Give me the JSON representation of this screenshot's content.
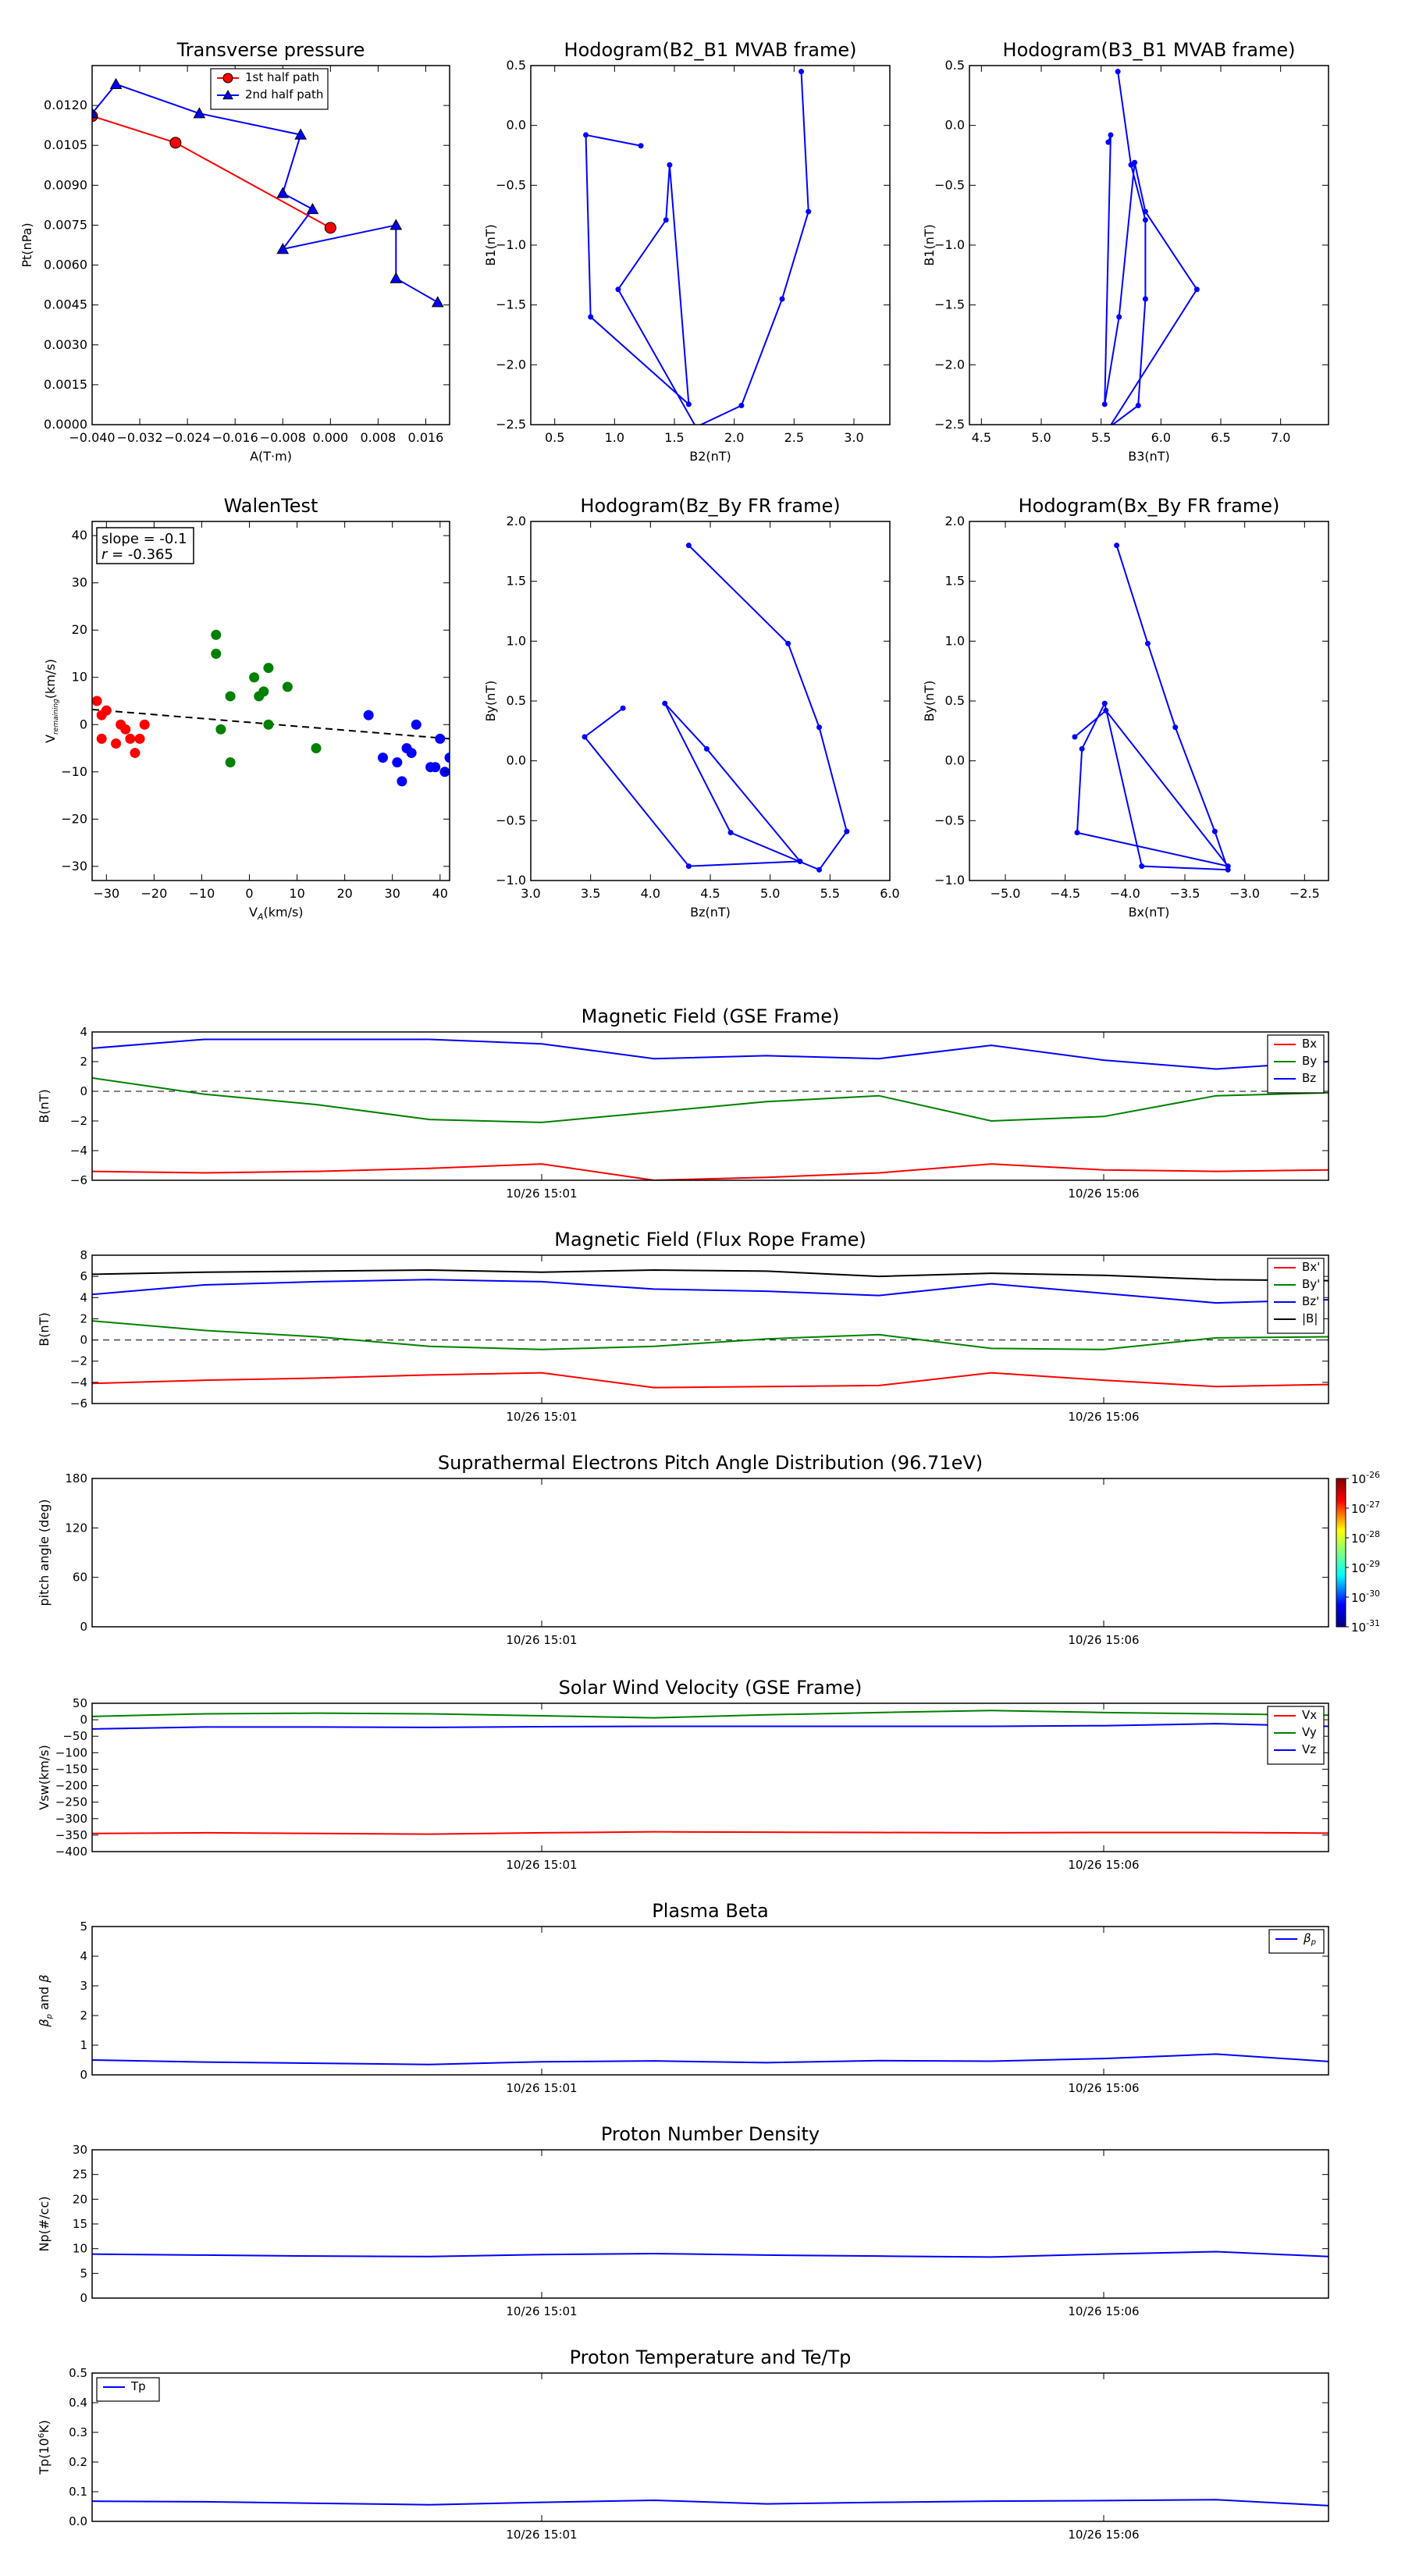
{
  "colors": {
    "red": "#ff0000",
    "green": "#008000",
    "blue": "#0000ff",
    "black": "#000000"
  },
  "chart_data": [
    {
      "id": "transverse-pressure",
      "type": "scatter",
      "title": "Transverse pressure",
      "xlabel": "A(T·m)",
      "ylabel": "Pt(nPa)",
      "xlim": [
        -0.04,
        0.02
      ],
      "ylim": [
        0,
        0.0135
      ],
      "xticks": [
        "−0.040",
        "−0.032",
        "−0.024",
        "−0.016",
        "−0.008",
        "0.000",
        "0.008",
        "0.016"
      ],
      "xtick_values": [
        -0.04,
        -0.032,
        -0.024,
        -0.016,
        -0.008,
        0.0,
        0.008,
        0.016
      ],
      "yticks": [
        "0.0000",
        "0.0015",
        "0.0030",
        "0.0045",
        "0.0060",
        "0.0075",
        "0.0090",
        "0.0105",
        "0.0120"
      ],
      "ytick_values": [
        0,
        0.0015,
        0.003,
        0.0045,
        0.006,
        0.0075,
        0.009,
        0.0105,
        0.012
      ],
      "legend": "top-center",
      "series": [
        {
          "name": "1st half path",
          "color": "#ff0000",
          "marker": "circle",
          "x": [
            -0.04,
            -0.026,
            0.0
          ],
          "y": [
            0.0116,
            0.0106,
            0.0074
          ]
        },
        {
          "name": "2nd half path",
          "color": "#0000ff",
          "marker": "triangle",
          "x": [
            -0.04,
            -0.036,
            -0.022,
            -0.005,
            -0.008,
            -0.003,
            -0.008,
            0.011,
            0.011,
            0.018
          ],
          "y": [
            0.0117,
            0.0128,
            0.0117,
            0.0109,
            0.0087,
            0.0081,
            0.0066,
            0.0075,
            0.0055,
            0.0046
          ]
        }
      ]
    },
    {
      "id": "hodogram-b2-b1",
      "type": "line",
      "title": "Hodogram(B2_B1 MVAB frame)",
      "xlabel": "B2(nT)",
      "ylabel": "B1(nT)",
      "xlim": [
        0.3,
        3.3
      ],
      "ylim": [
        -2.5,
        0.5
      ],
      "xticks": [
        "0.5",
        "1.0",
        "1.5",
        "2.0",
        "2.5",
        "3.0"
      ],
      "xtick_values": [
        0.5,
        1.0,
        1.5,
        2.0,
        2.5,
        3.0
      ],
      "yticks": [
        "−2.5",
        "−2.0",
        "−1.5",
        "−1.0",
        "−0.5",
        "0.0",
        "0.5"
      ],
      "ytick_values": [
        -2.5,
        -2.0,
        -1.5,
        -1.0,
        -0.5,
        0.0,
        0.5
      ],
      "series": [
        {
          "color": "#0000ff",
          "x": [
            1.22,
            0.76,
            0.8,
            1.62,
            1.46,
            1.43,
            1.03,
            1.68,
            2.06,
            2.4,
            2.62,
            2.56
          ],
          "y": [
            -0.17,
            -0.08,
            -1.6,
            -2.33,
            -0.33,
            -0.79,
            -1.37,
            -2.52,
            -2.34,
            -1.45,
            -0.72,
            0.45
          ]
        }
      ]
    },
    {
      "id": "hodogram-b3-b1",
      "type": "line",
      "title": "Hodogram(B3_B1 MVAB frame)",
      "xlabel": "B3(nT)",
      "ylabel": "B1(nT)",
      "xlim": [
        4.4,
        7.4
      ],
      "ylim": [
        -2.5,
        0.5
      ],
      "xticks": [
        "4.5",
        "5.0",
        "5.5",
        "6.0",
        "6.5",
        "7.0"
      ],
      "xtick_values": [
        4.5,
        5.0,
        5.5,
        6.0,
        6.5,
        7.0
      ],
      "yticks": [
        "−2.5",
        "−2.0",
        "−1.5",
        "−1.0",
        "−0.5",
        "0.0",
        "0.5"
      ],
      "ytick_values": [
        -2.5,
        -2.0,
        -1.5,
        -1.0,
        -0.5,
        0.0,
        0.5
      ],
      "series": [
        {
          "color": "#0000ff",
          "x": [
            5.56,
            5.58,
            5.53,
            5.65,
            5.78,
            5.87,
            6.3,
            5.57,
            5.81,
            5.87,
            5.87,
            5.75,
            5.64
          ],
          "y": [
            -0.14,
            -0.08,
            -2.33,
            -1.6,
            -0.31,
            -0.72,
            -1.37,
            -2.52,
            -2.34,
            -1.45,
            -0.79,
            -0.33,
            0.45
          ]
        }
      ]
    },
    {
      "id": "walen-test",
      "type": "scatter",
      "title": "WalenTest",
      "xlabel": "V_A(km/s)",
      "ylabel": "V_remaining(km/s)",
      "xlim": [
        -33,
        42
      ],
      "ylim": [
        -33,
        43
      ],
      "xticks": [
        "−30",
        "−20",
        "−10",
        "0",
        "10",
        "20",
        "30",
        "40"
      ],
      "xtick_values": [
        -30,
        -20,
        -10,
        0,
        10,
        20,
        30,
        40
      ],
      "yticks": [
        "−30",
        "−20",
        "−10",
        "0",
        "10",
        "20",
        "30",
        "40"
      ],
      "ytick_values": [
        -30,
        -20,
        -10,
        0,
        10,
        20,
        30,
        40
      ],
      "annotation": [
        "slope = -0.1",
        "r = -0.365"
      ],
      "fit": {
        "x": [
          -33,
          42
        ],
        "y": [
          3.2,
          -3.0
        ]
      },
      "series": [
        {
          "color": "#ff0000",
          "x": [
            -32,
            -31,
            -30,
            -31,
            -28,
            -27,
            -26,
            -25,
            -24,
            -23,
            -22
          ],
          "y": [
            5,
            2,
            3,
            -3,
            -4,
            0,
            -1,
            -3,
            -6,
            -3,
            0
          ]
        },
        {
          "color": "#008000",
          "x": [
            -7,
            -7,
            -6,
            -4,
            -4,
            1,
            2,
            3,
            4,
            4,
            8,
            14
          ],
          "y": [
            19,
            15,
            -1,
            6,
            -8,
            10,
            6,
            7,
            12,
            0,
            8,
            -5
          ]
        },
        {
          "color": "#0000ff",
          "x": [
            25,
            28,
            31,
            32,
            33,
            34,
            35,
            38,
            39,
            40,
            41,
            42
          ],
          "y": [
            2,
            -7,
            -8,
            -12,
            -5,
            -6,
            0,
            -9,
            -9,
            -3,
            -10,
            -7
          ]
        }
      ]
    },
    {
      "id": "hodogram-bz-by",
      "type": "line",
      "title": "Hodogram(Bz_By FR frame)",
      "xlabel": "Bz(nT)",
      "ylabel": "By(nT)",
      "xlim": [
        3.0,
        6.0
      ],
      "ylim": [
        -1.0,
        2.0
      ],
      "xticks": [
        "3.0",
        "3.5",
        "4.0",
        "4.5",
        "5.0",
        "5.5",
        "6.0"
      ],
      "xtick_values": [
        3.0,
        3.5,
        4.0,
        4.5,
        5.0,
        5.5,
        6.0
      ],
      "yticks": [
        "−1.0",
        "−0.5",
        "0.0",
        "0.5",
        "1.0",
        "1.5",
        "2.0"
      ],
      "ytick_values": [
        -1.0,
        -0.5,
        0.0,
        0.5,
        1.0,
        1.5,
        2.0
      ],
      "series": [
        {
          "color": "#0000ff",
          "x": [
            3.77,
            3.45,
            4.32,
            5.25,
            4.47,
            4.12,
            4.67,
            5.41,
            5.64,
            5.41,
            5.15,
            4.32
          ],
          "y": [
            0.44,
            0.2,
            -0.88,
            -0.84,
            0.1,
            0.48,
            -0.6,
            -0.91,
            -0.59,
            0.28,
            0.98,
            1.8
          ]
        }
      ]
    },
    {
      "id": "hodogram-bx-by",
      "type": "line",
      "title": "Hodogram(Bx_By FR frame)",
      "xlabel": "Bx(nT)",
      "ylabel": "By(nT)",
      "xlim": [
        -5.3,
        -2.3
      ],
      "ylim": [
        -1.0,
        2.0
      ],
      "xticks": [
        "−5.0",
        "−4.5",
        "−4.0",
        "−3.5",
        "−3.0",
        "−2.5"
      ],
      "xtick_values": [
        -5.0,
        -4.5,
        -4.0,
        -3.5,
        -3.0,
        -2.5
      ],
      "yticks": [
        "−1.0",
        "−0.5",
        "0.0",
        "0.5",
        "1.0",
        "1.5",
        "2.0"
      ],
      "ytick_values": [
        -1.0,
        -0.5,
        0.0,
        0.5,
        1.0,
        1.5,
        2.0
      ],
      "series": [
        {
          "color": "#0000ff",
          "x": [
            -4.42,
            -4.16,
            -3.14,
            -4.4,
            -4.36,
            -4.17,
            -3.86,
            -3.14,
            -3.25,
            -3.58,
            -3.81,
            -4.07
          ],
          "y": [
            0.2,
            0.42,
            -0.88,
            -0.6,
            0.1,
            0.48,
            -0.88,
            -0.91,
            -0.59,
            0.28,
            0.98,
            1.8
          ]
        }
      ]
    },
    {
      "id": "magnetic-field-gse",
      "type": "line",
      "title": "Magnetic Field (GSE Frame)",
      "ylabel": "B(nT)",
      "xlim": [
        0,
        11
      ],
      "ylim": [
        -6,
        4
      ],
      "xticks": [
        "10/26 15:01",
        "10/26 15:06"
      ],
      "xtick_values": [
        4,
        9
      ],
      "yticks": [
        "−6",
        "−4",
        "−2",
        "0",
        "2",
        "4"
      ],
      "ytick_values": [
        -6,
        -4,
        -2,
        0,
        2,
        4
      ],
      "zero_line": true,
      "legend": "top-right",
      "series": [
        {
          "name": "Bx",
          "color": "#ff0000",
          "y": [
            -5.4,
            -5.5,
            -5.4,
            -5.2,
            -4.9,
            -6.0,
            -5.8,
            -5.5,
            -4.9,
            -5.3,
            -5.4,
            -5.3
          ]
        },
        {
          "name": "By",
          "color": "#008000",
          "y": [
            0.9,
            -0.2,
            -0.9,
            -1.9,
            -2.1,
            -1.4,
            -0.7,
            -0.3,
            -2.0,
            -1.7,
            -0.3,
            -0.1
          ]
        },
        {
          "name": "Bz",
          "color": "#0000ff",
          "y": [
            2.9,
            3.5,
            3.5,
            3.5,
            3.2,
            2.2,
            2.4,
            2.2,
            3.1,
            2.1,
            1.5,
            2.0
          ]
        }
      ]
    },
    {
      "id": "magnetic-field-flux-rope",
      "type": "line",
      "title": "Magnetic Field (Flux Rope Frame)",
      "ylabel": "B(nT)",
      "xlim": [
        0,
        11
      ],
      "ylim": [
        -6,
        8
      ],
      "xticks": [
        "10/26 15:01",
        "10/26 15:06"
      ],
      "xtick_values": [
        4,
        9
      ],
      "yticks": [
        "−6",
        "−4",
        "−2",
        "0",
        "2",
        "4",
        "6",
        "8"
      ],
      "ytick_values": [
        -6,
        -4,
        -2,
        0,
        2,
        4,
        6,
        8
      ],
      "zero_line": true,
      "legend": "top-right",
      "series": [
        {
          "name": "Bx'",
          "color": "#ff0000",
          "y": [
            -4.1,
            -3.8,
            -3.6,
            -3.3,
            -3.1,
            -4.5,
            -4.4,
            -4.3,
            -3.1,
            -3.8,
            -4.4,
            -4.2
          ]
        },
        {
          "name": "By'",
          "color": "#008000",
          "y": [
            1.8,
            0.9,
            0.3,
            -0.6,
            -0.9,
            -0.6,
            0.1,
            0.5,
            -0.8,
            -0.9,
            0.2,
            0.3
          ]
        },
        {
          "name": "Bz'",
          "color": "#0000ff",
          "y": [
            4.3,
            5.2,
            5.5,
            5.7,
            5.5,
            4.8,
            4.6,
            4.2,
            5.3,
            4.4,
            3.5,
            3.8
          ]
        },
        {
          "name": "|B|",
          "color": "#000000",
          "y": [
            6.2,
            6.4,
            6.5,
            6.6,
            6.4,
            6.6,
            6.5,
            6.0,
            6.3,
            6.1,
            5.7,
            5.6
          ]
        }
      ]
    },
    {
      "id": "suprathermal-electrons-pad",
      "type": "heatmap",
      "title": "Suprathermal Electrons Pitch Angle Distribution (96.71eV)",
      "ylabel": "pitch angle (deg)",
      "xlim": [
        0,
        11
      ],
      "ylim": [
        0,
        180
      ],
      "xticks": [
        "10/26 15:01",
        "10/26 15:06"
      ],
      "xtick_values": [
        4,
        9
      ],
      "yticks": [
        "0",
        "60",
        "120",
        "180"
      ],
      "ytick_values": [
        0,
        60,
        120,
        180
      ],
      "colorbar": {
        "labels": [
          "10",
          "10",
          "10",
          "10",
          "10",
          "10"
        ],
        "exponents": [
          "-26",
          "-27",
          "-28",
          "-29",
          "-30",
          "-31"
        ]
      }
    },
    {
      "id": "solar-wind-velocity",
      "type": "line",
      "title": "Solar Wind Velocity (GSE Frame)",
      "ylabel": "Vsw(km/s)",
      "xlim": [
        0,
        11
      ],
      "ylim": [
        -400,
        50
      ],
      "xticks": [
        "10/26 15:01",
        "10/26 15:06"
      ],
      "xtick_values": [
        4,
        9
      ],
      "yticks": [
        "50",
        "0",
        "−50",
        "−100",
        "−150",
        "−200",
        "−250",
        "−300",
        "−350",
        "−400"
      ],
      "ytick_values": [
        50,
        0,
        -50,
        -100,
        -150,
        -200,
        -250,
        -300,
        -350,
        -400
      ],
      "legend": "top-right",
      "series": [
        {
          "name": "Vx",
          "color": "#ff0000",
          "y": [
            -345,
            -343,
            -345,
            -347,
            -343,
            -340,
            -341,
            -342,
            -343,
            -342,
            -342,
            -344
          ]
        },
        {
          "name": "Vy",
          "color": "#008000",
          "y": [
            10,
            18,
            20,
            18,
            12,
            6,
            15,
            22,
            28,
            22,
            18,
            14
          ]
        },
        {
          "name": "Vz",
          "color": "#0000ff",
          "y": [
            -28,
            -22,
            -22,
            -23,
            -21,
            -20,
            -20,
            -20,
            -20,
            -18,
            -12,
            -20
          ]
        }
      ]
    },
    {
      "id": "plasma-beta",
      "type": "line",
      "title": "Plasma Beta",
      "ylabel": "β_p and β",
      "xlim": [
        0,
        11
      ],
      "ylim": [
        0,
        5
      ],
      "xticks": [
        "10/26 15:01",
        "10/26 15:06"
      ],
      "xtick_values": [
        4,
        9
      ],
      "yticks": [
        "0",
        "1",
        "2",
        "3",
        "4",
        "5"
      ],
      "ytick_values": [
        0,
        1,
        2,
        3,
        4,
        5
      ],
      "legend": "top-right",
      "series": [
        {
          "name": "β_p",
          "color": "#0000ff",
          "y": [
            0.5,
            0.43,
            0.39,
            0.35,
            0.44,
            0.47,
            0.41,
            0.48,
            0.46,
            0.55,
            0.7,
            0.45
          ]
        }
      ]
    },
    {
      "id": "proton-number-density",
      "type": "line",
      "title": "Proton Number Density",
      "ylabel": "Np(#/cc)",
      "xlim": [
        0,
        11
      ],
      "ylim": [
        0,
        30
      ],
      "xticks": [
        "10/26 15:01",
        "10/26 15:06"
      ],
      "xtick_values": [
        4,
        9
      ],
      "yticks": [
        "0",
        "5",
        "10",
        "15",
        "20",
        "25",
        "30"
      ],
      "ytick_values": [
        0,
        5,
        10,
        15,
        20,
        25,
        30
      ],
      "series": [
        {
          "color": "#0000ff",
          "y": [
            8.9,
            8.7,
            8.5,
            8.4,
            8.8,
            9.0,
            8.7,
            8.5,
            8.3,
            8.9,
            9.4,
            8.4
          ]
        }
      ]
    },
    {
      "id": "proton-temperature",
      "type": "line",
      "title": "Proton Temperature and Te/Tp",
      "ylabel": "Tp(10^6K)",
      "xlim": [
        0,
        11
      ],
      "ylim": [
        0,
        0.5
      ],
      "xticks": [
        "10/26 15:01",
        "10/26 15:06"
      ],
      "xtick_values": [
        4,
        9
      ],
      "yticks": [
        "0.0",
        "0.1",
        "0.2",
        "0.3",
        "0.4",
        "0.5"
      ],
      "ytick_values": [
        0,
        0.1,
        0.2,
        0.3,
        0.4,
        0.5
      ],
      "legend": "top-left",
      "series": [
        {
          "name": "Tp",
          "color": "#0000ff",
          "y": [
            0.068,
            0.066,
            0.061,
            0.056,
            0.064,
            0.071,
            0.059,
            0.064,
            0.068,
            0.07,
            0.073,
            0.053
          ]
        }
      ]
    }
  ]
}
